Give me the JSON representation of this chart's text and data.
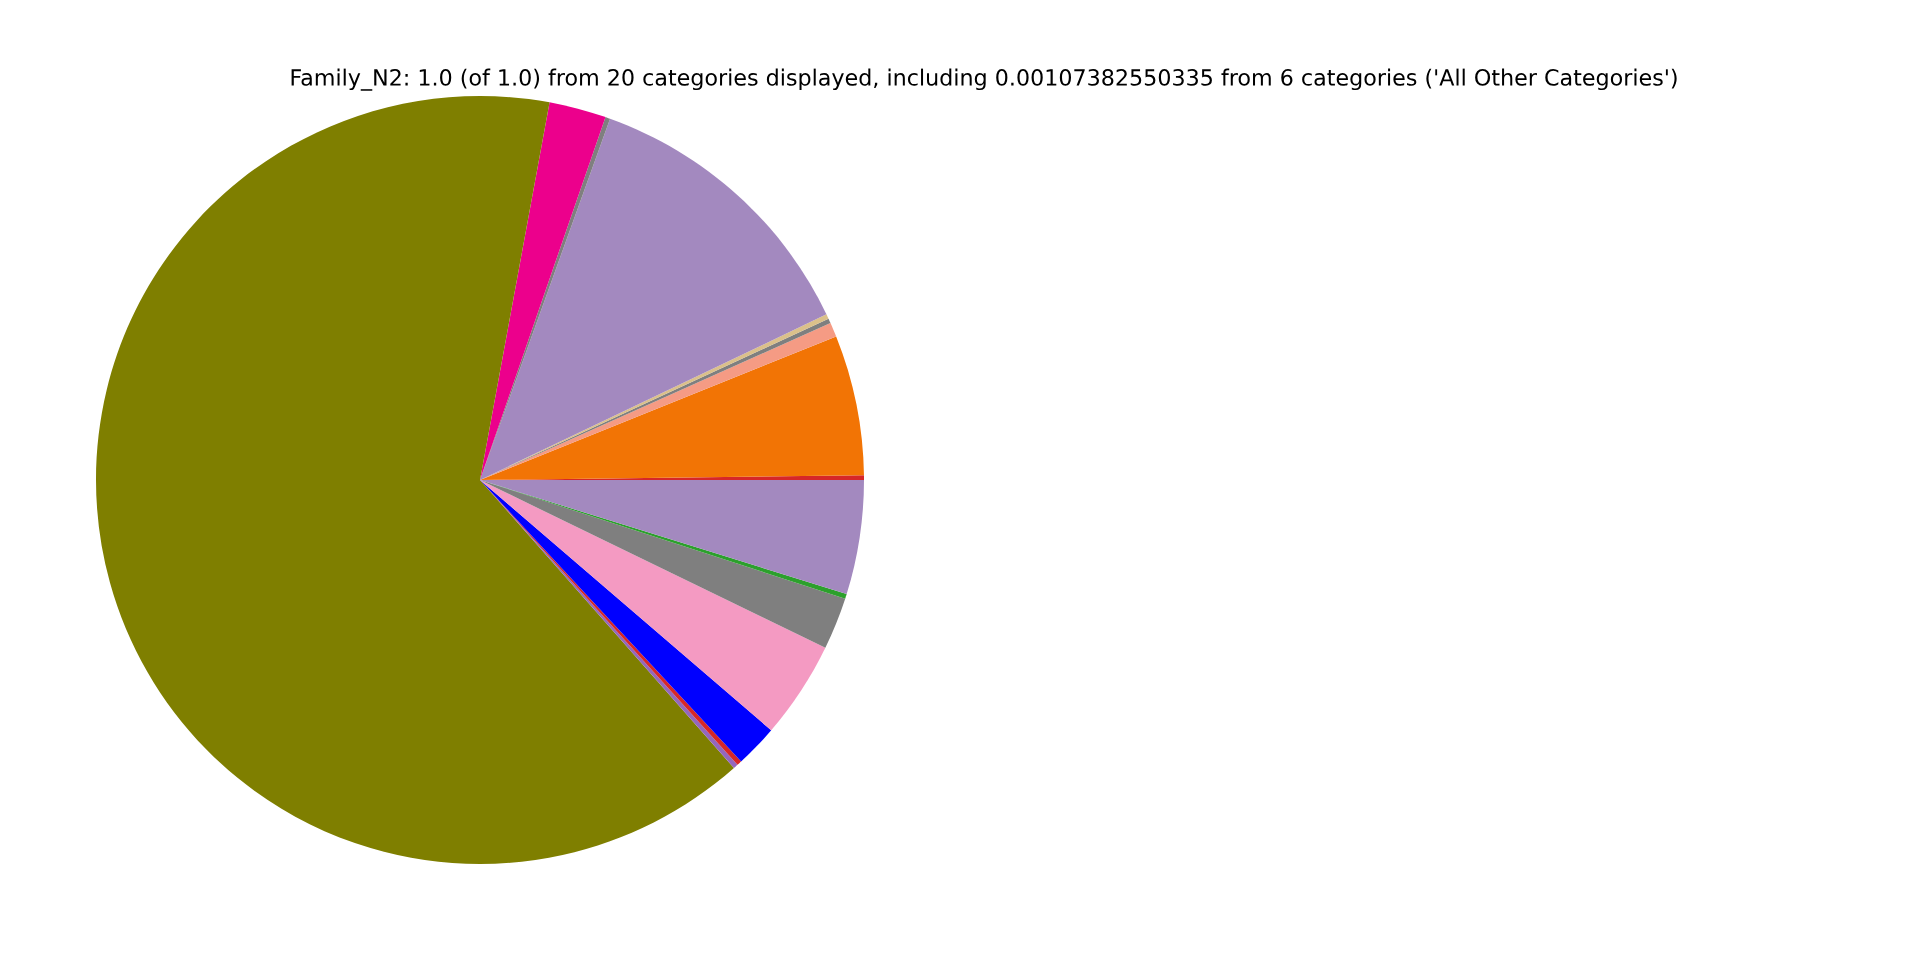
{
  "chart_data": {
    "type": "pie",
    "title": "Family_N2: 1.0 (of 1.0) from 20 categories displayed, including 0.00107382550335 from 6 categories ('All Other Categories')",
    "categories": [
      null,
      null,
      null,
      null,
      null,
      null,
      null,
      null,
      null,
      null,
      null,
      null,
      null,
      null,
      null,
      null
    ],
    "values": [
      0.2,
      5.9,
      0.6,
      0.2,
      0.2,
      12.4,
      0.2,
      2.4,
      64.4,
      0.2,
      0.2,
      1.8,
      4.1,
      2.2,
      0.2,
      4.8
    ],
    "colors": [
      "#d62728",
      "#f27405",
      "#f59b84",
      "#7f7f7f",
      "#dbc08a",
      "#a389bf",
      "#7f7f7f",
      "#ec008c",
      "#7f7f00",
      "#9467bd",
      "#d62728",
      "#0000ff",
      "#f49ac2",
      "#7f7f7f",
      "#2ca02c",
      "#a389bf"
    ]
  }
}
